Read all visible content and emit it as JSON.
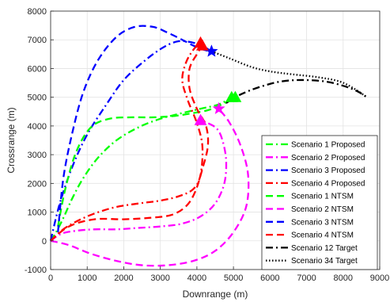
{
  "chart_data": {
    "type": "line",
    "title": "",
    "xlabel": "Downrange (m)",
    "ylabel": "Crossrange (m)",
    "xlim": [
      0,
      9000
    ],
    "ylim": [
      -1000,
      8000
    ],
    "xticks": [
      0,
      1000,
      2000,
      3000,
      4000,
      5000,
      6000,
      7000,
      8000,
      9000
    ],
    "yticks": [
      -1000,
      0,
      1000,
      2000,
      3000,
      4000,
      5000,
      6000,
      7000,
      8000
    ],
    "grid": true,
    "legend_position": "bottom-right",
    "series": [
      {
        "name": "Scenario 1 Proposed",
        "color": "#00ff00",
        "style": "dashdot",
        "x": [
          0,
          150,
          350,
          600,
          900,
          1300,
          1800,
          2400,
          3000,
          3600,
          4100,
          4600,
          4950
        ],
        "y": [
          0,
          300,
          800,
          1500,
          2200,
          2900,
          3500,
          3950,
          4250,
          4450,
          4600,
          4750,
          5000
        ],
        "end_marker": "triangle"
      },
      {
        "name": "Scenario 2 Proposed",
        "color": "#ff00ff",
        "style": "dashdot",
        "x": [
          0,
          300,
          700,
          1200,
          1800,
          2400,
          3000,
          3600,
          4100,
          4500,
          4750,
          4800,
          4700,
          4550,
          4300,
          4100
        ],
        "y": [
          0,
          250,
          350,
          400,
          400,
          450,
          500,
          600,
          850,
          1300,
          2000,
          2800,
          3500,
          3900,
          4100,
          4200
        ],
        "end_marker": "triangle"
      },
      {
        "name": "Scenario 3 Proposed",
        "color": "#0000ff",
        "style": "dashdot",
        "x": [
          0,
          250,
          600,
          1000,
          1500,
          2000,
          2600,
          3100,
          3500,
          3900,
          4200,
          4400
        ],
        "y": [
          0,
          1300,
          2600,
          3700,
          4700,
          5600,
          6300,
          6750,
          6950,
          6900,
          6750,
          6600
        ],
        "end_marker": "star"
      },
      {
        "name": "Scenario 4 Proposed",
        "color": "#ff0000",
        "style": "dashdot",
        "x": [
          0,
          400,
          1000,
          1700,
          2400,
          3000,
          3500,
          3900,
          4100,
          4150,
          4000,
          3750,
          3600,
          3700,
          3900,
          4100
        ],
        "y": [
          0,
          450,
          850,
          1150,
          1300,
          1400,
          1550,
          1800,
          2300,
          3300,
          4100,
          4900,
          5600,
          6200,
          6650,
          6900
        ],
        "end_marker": "triangle"
      },
      {
        "name": "Scenario 1 NTSM",
        "color": "#00ff00",
        "style": "dashed",
        "x": [
          200,
          400,
          700,
          1100,
          1600,
          2200,
          2800,
          3400,
          3900,
          4300,
          4600,
          4850,
          5050
        ],
        "y": [
          500,
          1800,
          3100,
          3950,
          4250,
          4300,
          4300,
          4350,
          4450,
          4550,
          4700,
          4850,
          5000
        ],
        "end_marker": "triangle"
      },
      {
        "name": "Scenario 2 NTSM",
        "color": "#ff00ff",
        "style": "dashed",
        "x": [
          0,
          500,
          1100,
          1800,
          2500,
          3200,
          3900,
          4500,
          5000,
          5350,
          5400,
          5200,
          4900,
          4600
        ],
        "y": [
          0,
          -150,
          -450,
          -700,
          -850,
          -850,
          -700,
          -350,
          300,
          1200,
          2300,
          3300,
          4100,
          4600
        ],
        "end_marker": "star"
      },
      {
        "name": "Scenario 3 NTSM",
        "color": "#0000ff",
        "style": "dashed",
        "x": [
          200,
          350,
          600,
          900,
          1300,
          1800,
          2300,
          2800,
          3200,
          3600,
          3900,
          4200,
          4400
        ],
        "y": [
          300,
          2200,
          3800,
          5200,
          6300,
          7100,
          7450,
          7450,
          7250,
          7000,
          6800,
          6650,
          6600
        ],
        "end_marker": "star"
      },
      {
        "name": "Scenario 4 NTSM",
        "color": "#ff0000",
        "style": "dashed",
        "x": [
          0,
          500,
          1200,
          2000,
          2700,
          3300,
          3700,
          3950,
          4150,
          4300,
          4250,
          4000,
          3800,
          3800,
          4000,
          4150
        ],
        "y": [
          0,
          500,
          750,
          750,
          800,
          900,
          1200,
          1700,
          2500,
          3300,
          4000,
          4600,
          5300,
          6000,
          6500,
          6800
        ],
        "end_marker": "triangle"
      },
      {
        "name": "Scenario 12 Target",
        "color": "#000000",
        "style": "dashdot",
        "x": [
          4800,
          5200,
          5700,
          6300,
          6900,
          7500,
          8000,
          8400,
          8650
        ],
        "y": [
          4800,
          5100,
          5350,
          5550,
          5600,
          5550,
          5400,
          5200,
          5000
        ]
      },
      {
        "name": "Scenario 34 Target",
        "color": "#000000",
        "style": "dotted",
        "x": [
          4400,
          4900,
          5500,
          6000,
          6600,
          7300,
          7900,
          8300,
          8650
        ],
        "y": [
          6600,
          6350,
          6050,
          5900,
          5800,
          5700,
          5550,
          5300,
          5000
        ]
      }
    ]
  }
}
